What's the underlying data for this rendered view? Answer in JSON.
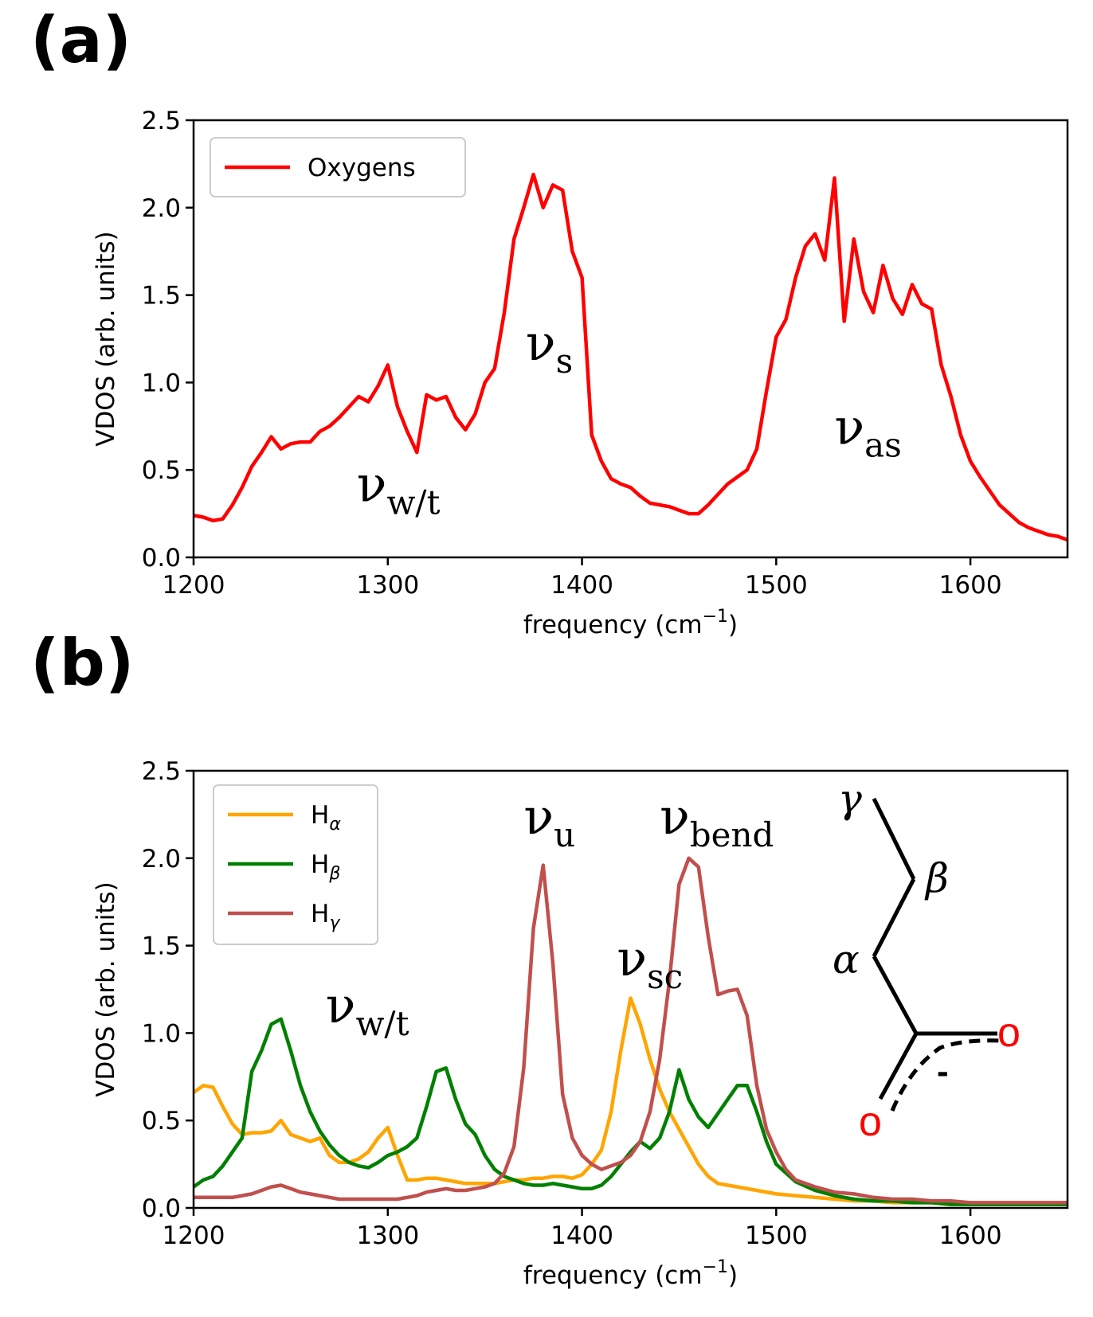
{
  "figure": {
    "label_a": "(a)",
    "label_b": "(b)"
  },
  "chart_data": [
    {
      "type": "line",
      "panel": "(a)",
      "xlabel": "frequency (cm",
      "xlabel_sup": "−1",
      "xlabel_end": ")",
      "ylabel": "VDOS (arb. units)",
      "xlim": [
        1200,
        1650
      ],
      "ylim": [
        0,
        2.5
      ],
      "xticks": [
        1200,
        1300,
        1400,
        1500,
        1600
      ],
      "xtick_labels": [
        "1200",
        "1300",
        "1400",
        "1500",
        "1600"
      ],
      "yticks": [
        0,
        0.5,
        1.0,
        1.5,
        2.0,
        2.5
      ],
      "ytick_labels": [
        "0.0",
        "0.5",
        "1.0",
        "1.5",
        "2.0",
        "2.5"
      ],
      "legend_position": "top-left",
      "series": [
        {
          "name": "Oxygens",
          "color": "#ff0000",
          "x": [
            1200,
            1205,
            1210,
            1215,
            1220,
            1225,
            1230,
            1235,
            1240,
            1245,
            1250,
            1255,
            1260,
            1265,
            1270,
            1275,
            1280,
            1285,
            1290,
            1295,
            1300,
            1305,
            1310,
            1315,
            1320,
            1325,
            1330,
            1335,
            1340,
            1345,
            1350,
            1355,
            1360,
            1365,
            1370,
            1375,
            1380,
            1385,
            1390,
            1395,
            1400,
            1405,
            1410,
            1415,
            1420,
            1425,
            1430,
            1435,
            1440,
            1445,
            1450,
            1455,
            1460,
            1465,
            1470,
            1475,
            1480,
            1485,
            1490,
            1495,
            1500,
            1505,
            1510,
            1515,
            1520,
            1525,
            1530,
            1535,
            1540,
            1545,
            1550,
            1555,
            1560,
            1565,
            1570,
            1575,
            1580,
            1585,
            1590,
            1595,
            1600,
            1605,
            1610,
            1615,
            1620,
            1625,
            1630,
            1635,
            1640,
            1645,
            1650
          ],
          "y": [
            0.24,
            0.23,
            0.21,
            0.22,
            0.3,
            0.4,
            0.52,
            0.6,
            0.69,
            0.62,
            0.65,
            0.66,
            0.66,
            0.72,
            0.75,
            0.8,
            0.86,
            0.92,
            0.89,
            0.98,
            1.1,
            0.86,
            0.72,
            0.6,
            0.93,
            0.9,
            0.92,
            0.8,
            0.73,
            0.82,
            1.0,
            1.08,
            1.4,
            1.82,
            2.0,
            2.19,
            2.0,
            2.13,
            2.1,
            1.75,
            1.6,
            0.7,
            0.55,
            0.45,
            0.42,
            0.4,
            0.35,
            0.31,
            0.3,
            0.29,
            0.27,
            0.25,
            0.25,
            0.3,
            0.36,
            0.42,
            0.46,
            0.5,
            0.62,
            0.95,
            1.26,
            1.36,
            1.6,
            1.78,
            1.85,
            1.7,
            2.17,
            1.35,
            1.82,
            1.52,
            1.4,
            1.67,
            1.48,
            1.39,
            1.56,
            1.45,
            1.42,
            1.1,
            0.92,
            0.7,
            0.55,
            0.46,
            0.38,
            0.3,
            0.25,
            0.2,
            0.17,
            0.15,
            0.13,
            0.12,
            0.1
          ]
        }
      ],
      "annotations": [
        {
          "sym": "ν",
          "sub": "w/t",
          "x": 1284,
          "y": 0.32,
          "size": 62,
          "color": "#000000"
        },
        {
          "sym": "ν",
          "sub": "s",
          "x": 1371,
          "y": 1.13,
          "size": 62,
          "color": "#1a3d1a"
        },
        {
          "sym": "ν",
          "sub": "as",
          "x": 1530,
          "y": 0.65,
          "size": 62,
          "color": "#000000"
        }
      ]
    },
    {
      "type": "line",
      "panel": "(b)",
      "xlabel": "frequency (cm",
      "xlabel_sup": "−1",
      "xlabel_end": ")",
      "ylabel": "VDOS (arb. units)",
      "xlim": [
        1200,
        1650
      ],
      "ylim": [
        0,
        2.5
      ],
      "xticks": [
        1200,
        1300,
        1400,
        1500,
        1600
      ],
      "xtick_labels": [
        "1200",
        "1300",
        "1400",
        "1500",
        "1600"
      ],
      "yticks": [
        0,
        0.5,
        1.0,
        1.5,
        2.0,
        2.5
      ],
      "ytick_labels": [
        "0.0",
        "0.5",
        "1.0",
        "1.5",
        "2.0",
        "2.5"
      ],
      "legend_position": "top-left",
      "series": [
        {
          "name": "H",
          "sub": "α",
          "color": "#ffa500",
          "x": [
            1200,
            1205,
            1210,
            1215,
            1220,
            1225,
            1230,
            1235,
            1240,
            1245,
            1250,
            1255,
            1260,
            1265,
            1270,
            1275,
            1280,
            1285,
            1290,
            1295,
            1300,
            1305,
            1310,
            1315,
            1320,
            1325,
            1330,
            1335,
            1340,
            1345,
            1350,
            1355,
            1360,
            1365,
            1370,
            1375,
            1380,
            1385,
            1390,
            1395,
            1400,
            1405,
            1410,
            1415,
            1420,
            1425,
            1430,
            1435,
            1440,
            1445,
            1450,
            1455,
            1460,
            1465,
            1470,
            1475,
            1480,
            1490,
            1500,
            1510,
            1520,
            1530,
            1540,
            1550,
            1560,
            1570,
            1580,
            1590,
            1600,
            1610,
            1620,
            1630,
            1640,
            1650
          ],
          "y": [
            0.66,
            0.7,
            0.69,
            0.58,
            0.48,
            0.42,
            0.43,
            0.43,
            0.44,
            0.5,
            0.42,
            0.4,
            0.38,
            0.4,
            0.3,
            0.26,
            0.26,
            0.28,
            0.32,
            0.4,
            0.46,
            0.3,
            0.16,
            0.16,
            0.17,
            0.17,
            0.16,
            0.15,
            0.14,
            0.14,
            0.14,
            0.14,
            0.15,
            0.16,
            0.16,
            0.17,
            0.17,
            0.18,
            0.18,
            0.17,
            0.19,
            0.25,
            0.33,
            0.55,
            0.9,
            1.2,
            1.05,
            0.85,
            0.68,
            0.55,
            0.45,
            0.35,
            0.25,
            0.18,
            0.14,
            0.13,
            0.12,
            0.1,
            0.08,
            0.07,
            0.06,
            0.05,
            0.04,
            0.04,
            0.03,
            0.03,
            0.03,
            0.02,
            0.02,
            0.02,
            0.02,
            0.02,
            0.02,
            0.02
          ]
        },
        {
          "name": "H",
          "sub": "β",
          "color": "#008000",
          "x": [
            1200,
            1205,
            1210,
            1215,
            1220,
            1225,
            1230,
            1235,
            1240,
            1245,
            1250,
            1255,
            1260,
            1265,
            1270,
            1275,
            1280,
            1285,
            1290,
            1295,
            1300,
            1305,
            1310,
            1315,
            1320,
            1325,
            1330,
            1335,
            1340,
            1345,
            1350,
            1355,
            1360,
            1365,
            1370,
            1375,
            1380,
            1385,
            1390,
            1395,
            1400,
            1405,
            1410,
            1415,
            1420,
            1425,
            1430,
            1435,
            1440,
            1445,
            1450,
            1455,
            1460,
            1465,
            1470,
            1475,
            1480,
            1485,
            1490,
            1495,
            1500,
            1510,
            1520,
            1530,
            1540,
            1550,
            1560,
            1570,
            1580,
            1590,
            1600,
            1610,
            1620,
            1630,
            1640,
            1650
          ],
          "y": [
            0.12,
            0.16,
            0.18,
            0.24,
            0.32,
            0.4,
            0.78,
            0.9,
            1.05,
            1.08,
            0.9,
            0.7,
            0.55,
            0.44,
            0.36,
            0.3,
            0.26,
            0.24,
            0.23,
            0.26,
            0.3,
            0.32,
            0.35,
            0.4,
            0.58,
            0.78,
            0.8,
            0.62,
            0.48,
            0.42,
            0.3,
            0.22,
            0.18,
            0.16,
            0.14,
            0.13,
            0.13,
            0.14,
            0.13,
            0.12,
            0.11,
            0.11,
            0.13,
            0.18,
            0.25,
            0.32,
            0.38,
            0.34,
            0.4,
            0.55,
            0.79,
            0.62,
            0.52,
            0.46,
            0.54,
            0.62,
            0.7,
            0.7,
            0.55,
            0.38,
            0.25,
            0.15,
            0.1,
            0.07,
            0.05,
            0.04,
            0.04,
            0.03,
            0.03,
            0.02,
            0.02,
            0.02,
            0.02,
            0.02,
            0.02,
            0.02
          ]
        },
        {
          "name": "H",
          "sub": "γ",
          "color": "#c0504d",
          "x": [
            1200,
            1205,
            1210,
            1215,
            1220,
            1225,
            1230,
            1235,
            1240,
            1245,
            1250,
            1255,
            1260,
            1265,
            1270,
            1275,
            1280,
            1285,
            1290,
            1295,
            1300,
            1305,
            1310,
            1315,
            1320,
            1325,
            1330,
            1335,
            1340,
            1345,
            1350,
            1355,
            1360,
            1365,
            1370,
            1375,
            1380,
            1385,
            1390,
            1395,
            1400,
            1405,
            1410,
            1415,
            1420,
            1425,
            1430,
            1435,
            1440,
            1445,
            1450,
            1455,
            1460,
            1465,
            1470,
            1475,
            1480,
            1485,
            1490,
            1495,
            1500,
            1505,
            1510,
            1520,
            1530,
            1540,
            1550,
            1560,
            1570,
            1580,
            1590,
            1600,
            1610,
            1620,
            1630,
            1640,
            1650
          ],
          "y": [
            0.06,
            0.06,
            0.06,
            0.06,
            0.06,
            0.07,
            0.08,
            0.1,
            0.12,
            0.13,
            0.11,
            0.09,
            0.08,
            0.07,
            0.06,
            0.05,
            0.05,
            0.05,
            0.05,
            0.05,
            0.05,
            0.05,
            0.06,
            0.07,
            0.09,
            0.1,
            0.11,
            0.1,
            0.1,
            0.11,
            0.12,
            0.14,
            0.2,
            0.35,
            0.8,
            1.6,
            1.96,
            1.4,
            0.65,
            0.4,
            0.3,
            0.25,
            0.22,
            0.24,
            0.26,
            0.3,
            0.38,
            0.55,
            0.85,
            1.3,
            1.85,
            2.0,
            1.95,
            1.55,
            1.22,
            1.24,
            1.25,
            1.1,
            0.7,
            0.45,
            0.32,
            0.22,
            0.16,
            0.12,
            0.09,
            0.08,
            0.06,
            0.05,
            0.05,
            0.04,
            0.04,
            0.03,
            0.03,
            0.03,
            0.03,
            0.03,
            0.03
          ]
        }
      ],
      "annotations": [
        {
          "sym": "ν",
          "sub": "w/t",
          "x": 1268,
          "y": 1.06,
          "size": 62,
          "color": "#000000"
        },
        {
          "sym": "ν",
          "sub": "u",
          "x": 1370,
          "y": 2.14,
          "size": 62,
          "color": "#000000"
        },
        {
          "sym": "ν",
          "sub": "sc",
          "x": 1418,
          "y": 1.33,
          "size": 62,
          "color": "#000000"
        },
        {
          "sym": "ν",
          "sub": "bend",
          "x": 1440,
          "y": 2.14,
          "size": 62,
          "color": "#2b1010"
        }
      ]
    }
  ],
  "molecule": {
    "gamma": "γ",
    "beta": "β",
    "alpha": "α",
    "o_right": "o",
    "o_left": "o",
    "charge": "-",
    "colors": {
      "gamma": "#b04a4a",
      "beta": "#2e8b2e",
      "alpha": "#f5a540",
      "oxygen": "#ff0000",
      "bond": "#000000"
    }
  }
}
